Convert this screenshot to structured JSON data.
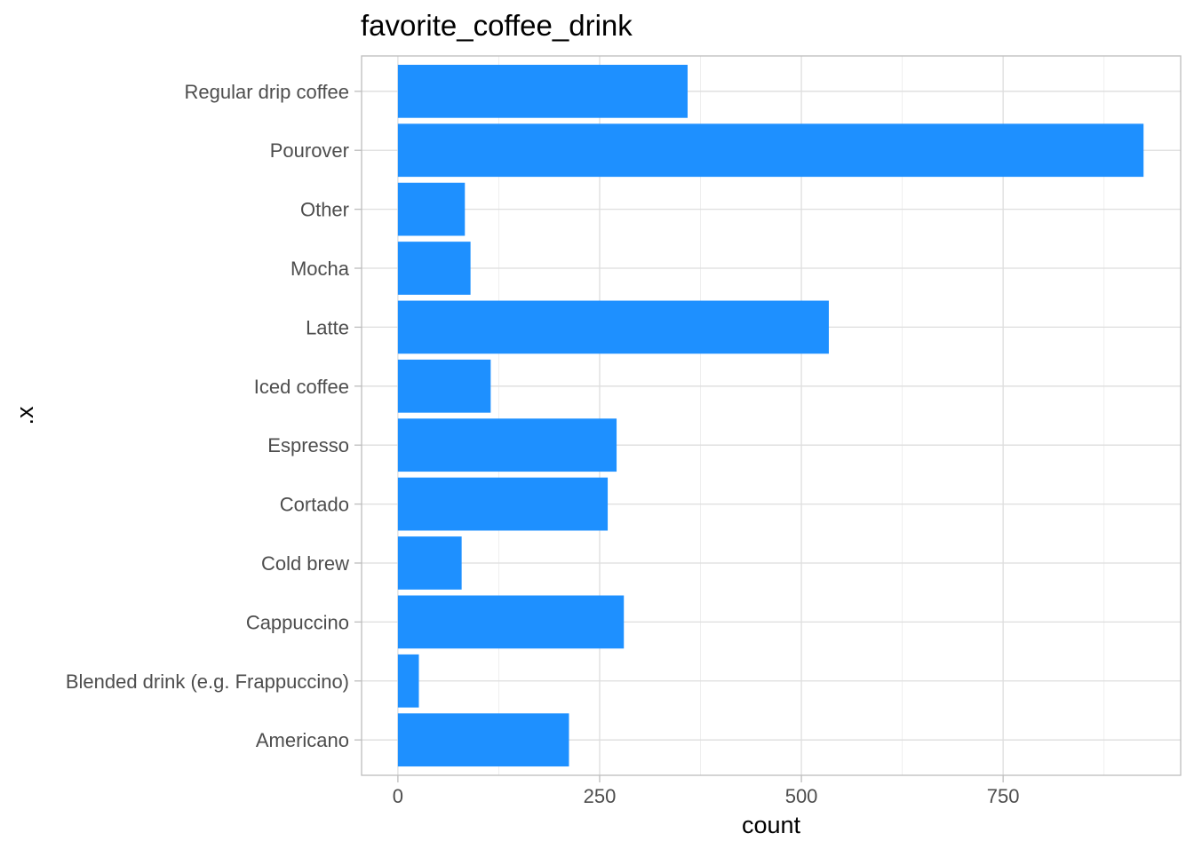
{
  "chart_data": {
    "type": "bar",
    "orientation": "horizontal",
    "title": "favorite_coffee_drink",
    "xlabel": "count",
    "ylabel": ".x",
    "categories": [
      "Americano",
      "Blended drink (e.g. Frappuccino)",
      "Cappuccino",
      "Cold brew",
      "Cortado",
      "Espresso",
      "Iced coffee",
      "Latte",
      "Mocha",
      "Other",
      "Pourover",
      "Regular drip coffee"
    ],
    "values": [
      212,
      26,
      280,
      79,
      260,
      271,
      115,
      534,
      90,
      83,
      924,
      359
    ],
    "xlim": [
      -45,
      970
    ],
    "x_ticks": [
      0,
      250,
      500,
      750
    ],
    "x_tick_labels": [
      "0",
      "250",
      "500",
      "750"
    ],
    "grid": true,
    "legend": "none",
    "colors": {
      "bar": "#1E90FF",
      "grid_major": "#DEDEDE",
      "grid_minor": "#EFEFEF",
      "panel_border": "#BDBDBD",
      "tick_text": "#4D4D4D",
      "axis_title": "#000000"
    }
  }
}
